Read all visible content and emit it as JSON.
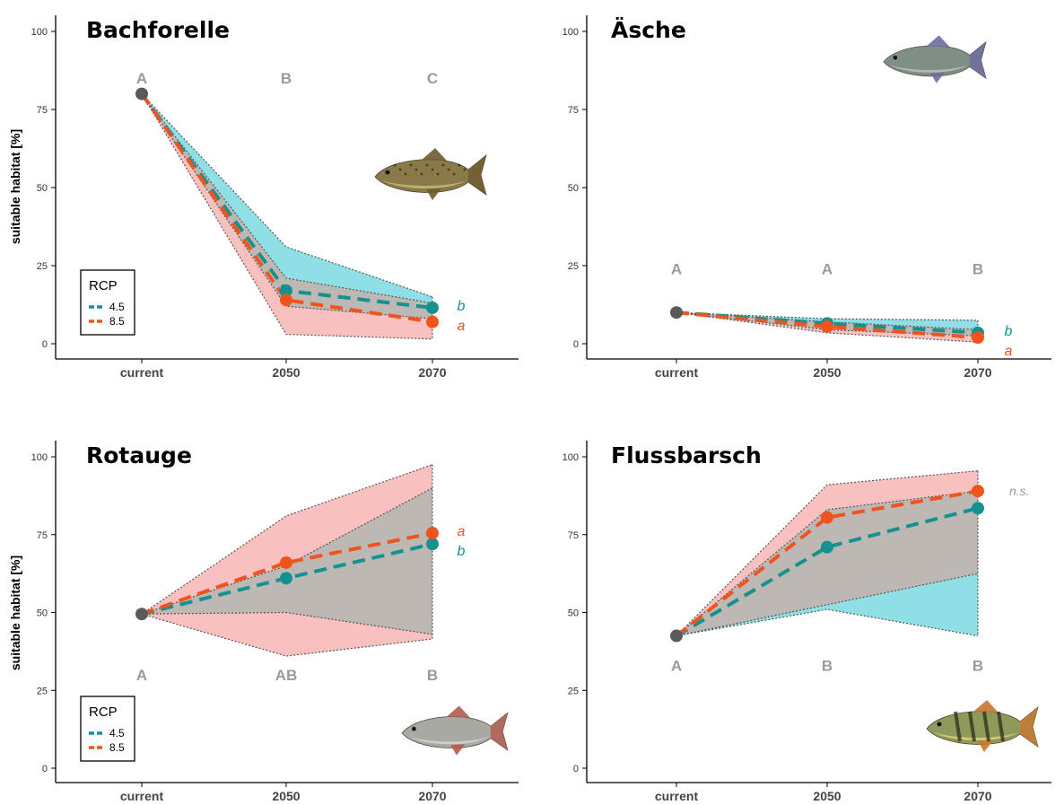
{
  "colors": {
    "rcp45": "#17918f",
    "rcp85": "#f0541e",
    "band45": "#8ee0e6",
    "band85": "#f9c0c0",
    "overlap": "#bdb8b4",
    "current_point": "#5a5a5a",
    "letters": "#9a9a9a",
    "ns": "#9a9a9a"
  },
  "chart_data": [
    {
      "type": "line",
      "title": "Bachforelle",
      "ylabel": "suitable habitat [%]",
      "categories": [
        "current",
        "2050",
        "2070"
      ],
      "ylim": [
        0,
        100
      ],
      "yticks": [
        0,
        25,
        50,
        75,
        100
      ],
      "group_letters": [
        "A",
        "B",
        "C"
      ],
      "current": 80,
      "series": [
        {
          "name": "4.5",
          "values": [
            80,
            17,
            11.5
          ],
          "band": {
            "low": [
              80,
              12,
              8
            ],
            "high": [
              80,
              31,
              15
            ]
          },
          "sig": "b"
        },
        {
          "name": "8.5",
          "values": [
            80,
            14,
            7
          ],
          "band": {
            "low": [
              80,
              3,
              1.5
            ],
            "high": [
              80,
              21,
              13
            ]
          },
          "sig": "a"
        }
      ],
      "legend": {
        "title": "RCP",
        "entries": [
          "4.5",
          "8.5"
        ],
        "position": "bottom-left"
      },
      "fish_icon": "brown-trout-icon"
    },
    {
      "type": "line",
      "title": "Äsche",
      "ylabel": "",
      "categories": [
        "current",
        "2050",
        "2070"
      ],
      "ylim": [
        0,
        100
      ],
      "yticks": [
        0,
        25,
        50,
        75,
        100
      ],
      "group_letters": [
        "A",
        "A",
        "B"
      ],
      "current": 10,
      "series": [
        {
          "name": "4.5",
          "values": [
            10,
            6.5,
            3.5
          ],
          "band": {
            "low": [
              10,
              4.5,
              2.5
            ],
            "high": [
              10,
              8,
              7.5
            ]
          },
          "sig": "b"
        },
        {
          "name": "8.5",
          "values": [
            10,
            5.5,
            2
          ],
          "band": {
            "low": [
              10,
              3.5,
              0.5
            ],
            "high": [
              10,
              7,
              4.5
            ]
          },
          "sig": "a"
        }
      ],
      "fish_icon": "grayling-icon"
    },
    {
      "type": "line",
      "title": "Rotauge",
      "ylabel": "suitable habitat [%]",
      "categories": [
        "current",
        "2050",
        "2070"
      ],
      "ylim": [
        0,
        100
      ],
      "yticks": [
        0,
        25,
        50,
        75,
        100
      ],
      "group_letters": [
        "A",
        "AB",
        "B"
      ],
      "current": 49.5,
      "series": [
        {
          "name": "4.5",
          "values": [
            49.5,
            61,
            72
          ],
          "band": {
            "low": [
              49.5,
              50,
              43
            ],
            "high": [
              49.5,
              65,
              90
            ]
          },
          "sig": "b"
        },
        {
          "name": "8.5",
          "values": [
            49.5,
            66,
            75.5
          ],
          "band": {
            "low": [
              49.5,
              36,
              41.5
            ],
            "high": [
              49.5,
              81,
              97.5
            ]
          },
          "sig": "a"
        }
      ],
      "legend": {
        "title": "RCP",
        "entries": [
          "4.5",
          "8.5"
        ],
        "position": "bottom-left"
      },
      "fish_icon": "roach-icon"
    },
    {
      "type": "line",
      "title": "Flussbarsch",
      "ylabel": "",
      "categories": [
        "current",
        "2050",
        "2070"
      ],
      "ylim": [
        0,
        100
      ],
      "yticks": [
        0,
        25,
        50,
        75,
        100
      ],
      "group_letters": [
        "A",
        "B",
        "B"
      ],
      "current": 42.5,
      "series": [
        {
          "name": "4.5",
          "values": [
            42.5,
            71,
            83.5
          ],
          "band": {
            "low": [
              42.5,
              51,
              42.5
            ],
            "high": [
              42.5,
              83,
              89
            ]
          },
          "sig": ""
        },
        {
          "name": "8.5",
          "values": [
            42.5,
            80.5,
            89
          ],
          "band": {
            "low": [
              42.5,
              52.5,
              62.5
            ],
            "high": [
              42.5,
              91,
              95.5
            ]
          },
          "sig": ""
        }
      ],
      "ns_label": "n.s.",
      "fish_icon": "perch-icon"
    }
  ]
}
